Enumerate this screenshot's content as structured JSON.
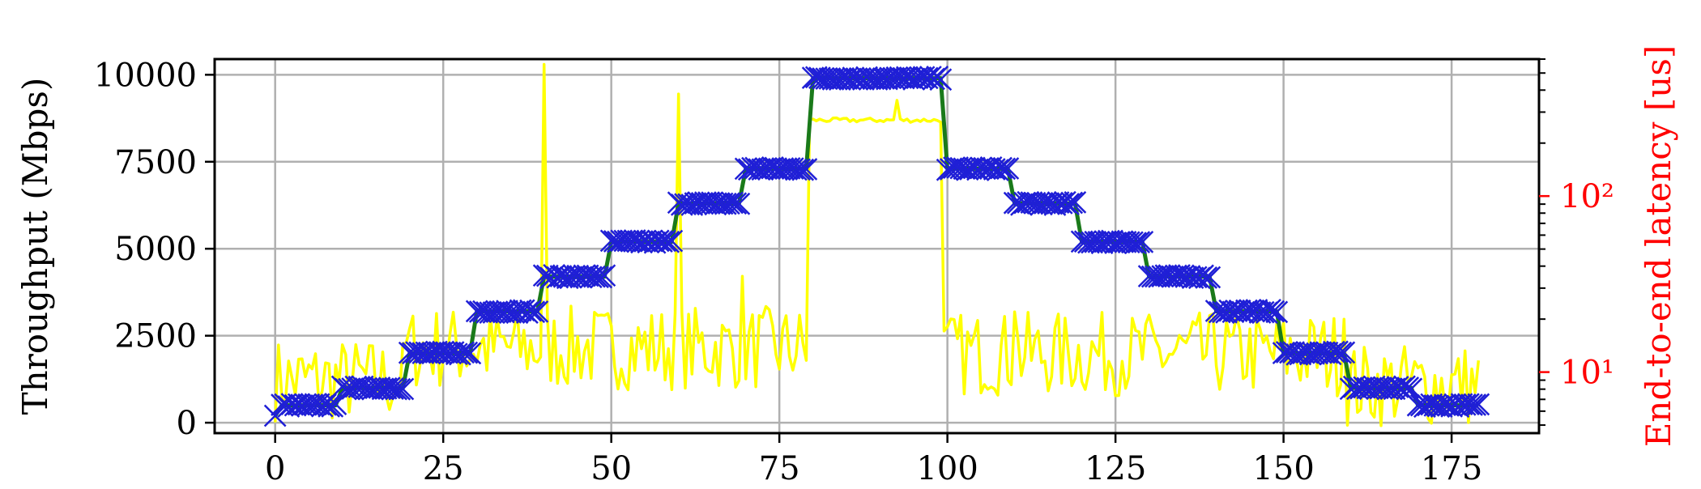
{
  "chart_data": {
    "type": "line",
    "title": "",
    "xlabel": "",
    "ylabel": "Throughput (Mbps)",
    "y2label": "End-to-end latency [us]",
    "xlim": [
      -9,
      188
    ],
    "ylim": [
      -300,
      10450
    ],
    "y2lim": [
      4.5,
      600
    ],
    "y2scale": "log",
    "grid": true,
    "colors": {
      "y2axis": "#ff0000",
      "throughput_line": "#1a7a1a",
      "throughput_markers": "#1f1fd6",
      "latency_line": "#ffff00",
      "grid": "#b0b0b0"
    },
    "x_ticks": [
      {
        "value": 0,
        "label": "0"
      },
      {
        "value": 25,
        "label": "25"
      },
      {
        "value": 50,
        "label": "50"
      },
      {
        "value": 75,
        "label": "75"
      },
      {
        "value": 100,
        "label": "100"
      },
      {
        "value": 125,
        "label": "125"
      },
      {
        "value": 150,
        "label": "150"
      },
      {
        "value": 175,
        "label": "175"
      }
    ],
    "y_ticks": [
      {
        "value": 0,
        "label": "0"
      },
      {
        "value": 2500,
        "label": "2500"
      },
      {
        "value": 5000,
        "label": "5000"
      },
      {
        "value": 7500,
        "label": "7500"
      },
      {
        "value": 10000,
        "label": "10000"
      }
    ],
    "y2_ticks": [
      {
        "value": 10,
        "label": "10¹"
      },
      {
        "value": 100,
        "label": "10²"
      }
    ],
    "series": [
      {
        "role": "throughput",
        "axis": "left",
        "style": "line-with-x-markers",
        "steps": [
          {
            "from": 0,
            "to": 9,
            "value": 500
          },
          {
            "from": 9,
            "to": 19,
            "value": 1000
          },
          {
            "from": 19,
            "to": 29,
            "value": 2000
          },
          {
            "from": 29,
            "to": 39,
            "value": 3200
          },
          {
            "from": 39,
            "to": 49,
            "value": 4200
          },
          {
            "from": 49,
            "to": 59,
            "value": 5200
          },
          {
            "from": 59,
            "to": 69,
            "value": 6300
          },
          {
            "from": 69,
            "to": 79,
            "value": 7300
          },
          {
            "from": 79,
            "to": 99,
            "value": 9900
          },
          {
            "from": 99,
            "to": 109,
            "value": 7300
          },
          {
            "from": 109,
            "to": 119,
            "value": 6300
          },
          {
            "from": 119,
            "to": 129,
            "value": 5200
          },
          {
            "from": 129,
            "to": 139,
            "value": 4200
          },
          {
            "from": 139,
            "to": 149,
            "value": 3200
          },
          {
            "from": 149,
            "to": 159,
            "value": 2000
          },
          {
            "from": 159,
            "to": 169,
            "value": 1000
          },
          {
            "from": 169,
            "to": 179,
            "value": 500
          }
        ],
        "start_value": 200
      },
      {
        "role": "latency",
        "axis": "right",
        "style": "line",
        "x_range": [
          0,
          179
        ],
        "baseline_segments": [
          {
            "from": 0,
            "to": 19,
            "value": 8.5
          },
          {
            "from": 19,
            "to": 79,
            "value": 13
          },
          {
            "from": 79,
            "to": 99,
            "value": 270
          },
          {
            "from": 99,
            "to": 159,
            "value": 12
          },
          {
            "from": 159,
            "to": 179,
            "value": 8
          }
        ],
        "spikes": [
          {
            "x": 40,
            "value": 560
          },
          {
            "x": 60,
            "value": 380
          },
          {
            "x": 92.5,
            "value": 350
          },
          {
            "x": 69.5,
            "value": 35
          },
          {
            "x": 110,
            "value": 22
          },
          {
            "x": 159,
            "value": 20
          }
        ]
      }
    ]
  }
}
